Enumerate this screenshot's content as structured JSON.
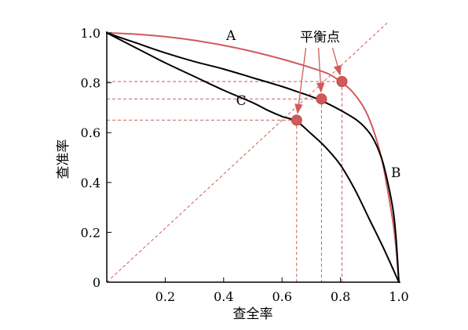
{
  "chart_data": {
    "type": "line",
    "title": "",
    "xlabel": "查全率",
    "ylabel": "查准率",
    "xlim": [
      0,
      1
    ],
    "ylim": [
      0,
      1
    ],
    "grid": false,
    "x_ticks": [
      {
        "value": 0.2,
        "label": "0.2"
      },
      {
        "value": 0.4,
        "label": "0.4"
      },
      {
        "value": 0.6,
        "label": "0.6"
      },
      {
        "value": 0.8,
        "label": "0.8"
      },
      {
        "value": 1.0,
        "label": "1.0"
      }
    ],
    "y_ticks": [
      {
        "value": 0,
        "label": "0"
      },
      {
        "value": 0.2,
        "label": "0.2"
      },
      {
        "value": 0.4,
        "label": "0.4"
      },
      {
        "value": 0.6,
        "label": "0.6"
      },
      {
        "value": 0.8,
        "label": "0.8"
      },
      {
        "value": 1.0,
        "label": "1.0"
      }
    ],
    "series": [
      {
        "name": "A",
        "color": "#d05a5a",
        "x": [
          0,
          0.1,
          0.2,
          0.3,
          0.4,
          0.5,
          0.6,
          0.7,
          0.76,
          0.8,
          0.84,
          0.88,
          0.91,
          0.94,
          0.96,
          0.98,
          0.99,
          1.0
        ],
        "y": [
          1.0,
          0.995,
          0.985,
          0.97,
          0.95,
          0.925,
          0.895,
          0.86,
          0.835,
          0.805,
          0.765,
          0.7,
          0.62,
          0.5,
          0.38,
          0.24,
          0.14,
          0.0
        ]
      },
      {
        "name": "B",
        "color": "#000000",
        "x": [
          0,
          0.1,
          0.2,
          0.3,
          0.4,
          0.5,
          0.6,
          0.65,
          0.7,
          0.75,
          0.8,
          0.85,
          0.88,
          0.91,
          0.94,
          0.96,
          0.98,
          0.99,
          1.0
        ],
        "y": [
          1.0,
          0.96,
          0.92,
          0.885,
          0.855,
          0.82,
          0.785,
          0.765,
          0.745,
          0.72,
          0.69,
          0.655,
          0.625,
          0.58,
          0.5,
          0.41,
          0.29,
          0.18,
          0.0
        ]
      },
      {
        "name": "C",
        "color": "#000000",
        "x": [
          0,
          0.1,
          0.2,
          0.3,
          0.4,
          0.5,
          0.55,
          0.6,
          0.65,
          0.7,
          0.75,
          0.8,
          0.85,
          0.9,
          0.95,
          1.0
        ],
        "y": [
          1.0,
          0.94,
          0.88,
          0.825,
          0.77,
          0.72,
          0.69,
          0.665,
          0.645,
          0.595,
          0.54,
          0.47,
          0.37,
          0.25,
          0.13,
          0.0
        ]
      }
    ],
    "curve_labels": [
      {
        "text": "A",
        "x": 0.425,
        "y": 0.99
      },
      {
        "text": "B",
        "x": 0.99,
        "y": 0.44
      },
      {
        "text": "C",
        "x": 0.46,
        "y": 0.73
      }
    ],
    "diagonal": {
      "x": [
        0,
        1
      ],
      "y": [
        0,
        1
      ],
      "color": "#d05a5a",
      "style": "dashed"
    },
    "break_even_points": [
      {
        "x": 0.65,
        "y": 0.65
      },
      {
        "x": 0.735,
        "y": 0.735
      },
      {
        "x": 0.805,
        "y": 0.805
      }
    ],
    "point_color": "#d05a5a",
    "annotation": {
      "text": "平衡点",
      "x": 0.73,
      "y": 0.965
    }
  }
}
